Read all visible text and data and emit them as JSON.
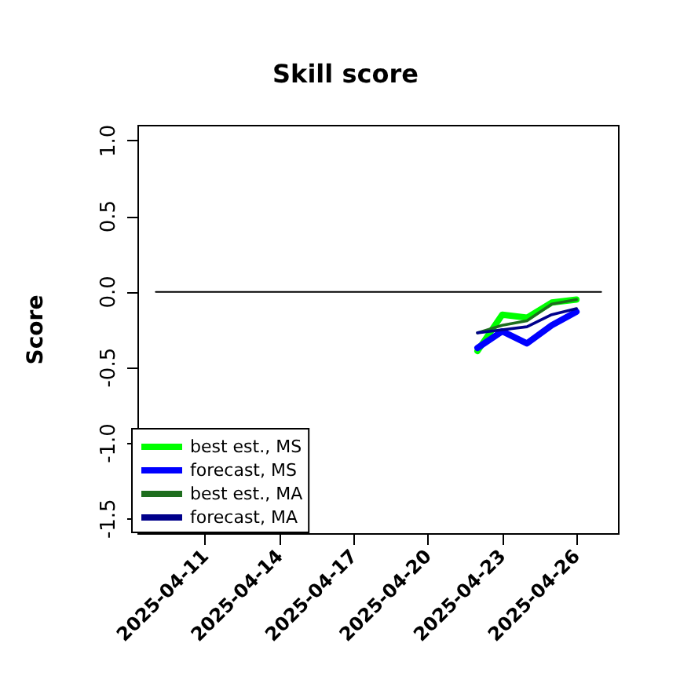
{
  "chart_data": {
    "type": "line",
    "title": "Skill score",
    "ylabel": "Score",
    "xlim": [
      "2025-04-08T07:00",
      "2025-04-27T17:00"
    ],
    "xticks": [
      "2025-04-11",
      "2025-04-14",
      "2025-04-17",
      "2025-04-20",
      "2025-04-23",
      "2025-04-26"
    ],
    "ylim": [
      -1.6,
      1.1
    ],
    "yticks": [
      {
        "value": -1.5,
        "label": "-1.5"
      },
      {
        "value": -1,
        "label": "-1.0"
      },
      {
        "value": -0.5,
        "label": "-0.5"
      },
      {
        "value": 0,
        "label": "0.0"
      },
      {
        "value": 0.5,
        "label": "0.5"
      },
      {
        "value": 1,
        "label": "1.0"
      }
    ],
    "grid": false,
    "legend": "bottom left",
    "marker": "none",
    "line_style": "solid",
    "series": [
      {
        "color": "#000000",
        "x": [
          "2025-04-09",
          "2025-04-27"
        ],
        "values": [
          0,
          0
        ]
      },
      {
        "name": "best est., MS",
        "color": "#00ff00",
        "x": [
          "2025-04-22",
          "2025-04-23",
          "2025-04-24",
          "2025-04-25",
          "2025-04-26"
        ],
        "values": [
          -0.39,
          -0.15,
          -0.17,
          -0.07,
          -0.05
        ]
      },
      {
        "name": "forecast, MS",
        "color": "#0000ff",
        "x": [
          "2025-04-22",
          "2025-04-23",
          "2025-04-24",
          "2025-04-25",
          "2025-04-26"
        ],
        "values": [
          -0.37,
          -0.26,
          -0.34,
          -0.22,
          -0.13
        ]
      },
      {
        "name": "best est., MA",
        "color": "#1e6e1e",
        "x": [
          "2025-04-22",
          "2025-04-23",
          "2025-04-24",
          "2025-04-25",
          "2025-04-26"
        ],
        "values": [
          -0.27,
          -0.22,
          -0.19,
          -0.08,
          -0.05
        ]
      },
      {
        "name": "forecast, MA",
        "color": "#00008b",
        "x": [
          "2025-04-22",
          "2025-04-23",
          "2025-04-24",
          "2025-04-25",
          "2025-04-26"
        ],
        "values": [
          -0.27,
          -0.25,
          -0.23,
          -0.15,
          -0.11
        ]
      }
    ]
  }
}
